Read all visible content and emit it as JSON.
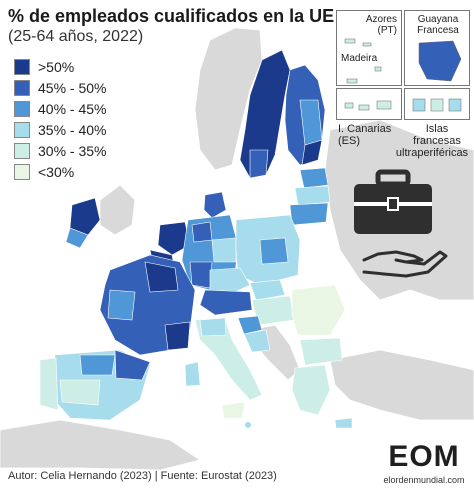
{
  "title": "% de empleados cualificados en la UE",
  "subtitle": "(25-64 años, 2022)",
  "colors": {
    "gt50": "#1b3a8c",
    "c45_50": "#3560b8",
    "c40_45": "#4f97d6",
    "c35_40": "#a6dceb",
    "c30_35": "#cdeee6",
    "lt30": "#e9f6e4",
    "non_eu": "#d9d9d9",
    "sea": "#ffffff"
  },
  "legend": [
    {
      "label": ">50%",
      "color": "#1b3a8c"
    },
    {
      "label": "45% - 50%",
      "color": "#3560b8"
    },
    {
      "label": "40% - 45%",
      "color": "#4f97d6"
    },
    {
      "label": "35% - 40%",
      "color": "#a6dceb"
    },
    {
      "label": "30% - 35%",
      "color": "#cdeee6"
    },
    {
      "label": "<30%",
      "color": "#e9f6e4"
    }
  ],
  "insets": {
    "azores": "Azores",
    "azores_country": "(PT)",
    "madeira": "Madeira",
    "guyana": "Guayana",
    "guyana2": "Francesa",
    "canarias": "I. Canarias",
    "canarias_country": "(ES)",
    "islas1": "Islas",
    "islas2": "francesas",
    "islas3": "ultraperiféricas"
  },
  "footer": "Autor: Celia Hernando (2023) | Fuente: Eurostat (2023)",
  "logo": {
    "text": "EOM",
    "caption": "elordenmundial.com"
  },
  "icons": [
    "briefcase-icon",
    "hand-icon"
  ]
}
